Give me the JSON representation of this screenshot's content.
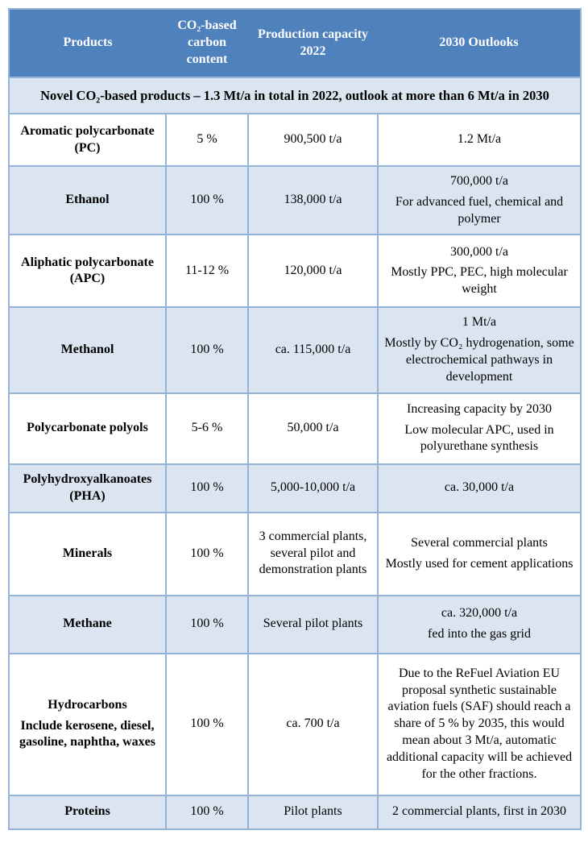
{
  "colors": {
    "header_bg": "#4f81bd",
    "header_text": "#ffffff",
    "band_bg": "#dbe5f1",
    "border_color": "#95b3d7"
  },
  "table": {
    "columns": [
      "Products",
      "CO₂-based carbon content",
      "Production capacity 2022",
      "2030 Outlooks"
    ],
    "subheader": "Novel CO₂-based products – 1.3 Mt/a in total in 2022, outlook at more than 6 Mt/a in 2030",
    "rows": [
      {
        "product": [
          "Aromatic polycarbonate (PC)"
        ],
        "carbon_content": "5 %",
        "capacity": [
          "900,500 t/a"
        ],
        "outlook": [
          "1.2 Mt/a"
        ]
      },
      {
        "product": [
          "Ethanol"
        ],
        "carbon_content": "100 %",
        "capacity": [
          "138,000 t/a"
        ],
        "outlook": [
          "700,000 t/a",
          "For advanced fuel, chemical and polymer"
        ]
      },
      {
        "product": [
          "Aliphatic polycarbonate (APC)"
        ],
        "carbon_content": "11-12 %",
        "capacity": [
          "120,000 t/a"
        ],
        "outlook": [
          "300,000 t/a",
          "Mostly PPC, PEC, high molecular weight"
        ]
      },
      {
        "product": [
          "Methanol"
        ],
        "carbon_content": "100 %",
        "capacity": [
          "ca. 115,000 t/a"
        ],
        "outlook": [
          "1 Mt/a",
          "Mostly by CO₂ hydrogenation, some electrochemical pathways in development"
        ]
      },
      {
        "product": [
          "Polycarbonate polyols"
        ],
        "carbon_content": "5-6 %",
        "capacity": [
          "50,000 t/a"
        ],
        "outlook": [
          "Increasing capacity by 2030",
          "Low molecular APC, used in polyurethane synthesis"
        ]
      },
      {
        "product": [
          "Polyhydroxyalkanoates (PHA)"
        ],
        "carbon_content": "100 %",
        "capacity": [
          "5,000-10,000 t/a"
        ],
        "outlook": [
          "ca. 30,000 t/a"
        ]
      },
      {
        "product": [
          "Minerals"
        ],
        "carbon_content": "100 %",
        "capacity": [
          "3 commercial plants, several pilot and demonstration plants"
        ],
        "outlook": [
          "Several commercial plants",
          "Mostly used for cement applications"
        ]
      },
      {
        "product": [
          "Methane"
        ],
        "carbon_content": "100 %",
        "capacity": [
          "Several pilot plants"
        ],
        "outlook": [
          "ca. 320,000 t/a",
          "fed into the gas grid"
        ]
      },
      {
        "product": [
          "Hydrocarbons",
          "Include kerosene, diesel, gasoline, naphtha, waxes"
        ],
        "carbon_content": "100 %",
        "capacity": [
          "ca. 700 t/a"
        ],
        "outlook": [
          "Due to the ReFuel Aviation EU proposal synthetic sustainable aviation fuels (SAF) should reach a share of 5 % by 2035, this would mean about 3 Mt/a, automatic additional capacity will be achieved for the other fractions."
        ]
      },
      {
        "product": [
          "Proteins"
        ],
        "carbon_content": "100 %",
        "capacity": [
          "Pilot plants"
        ],
        "outlook": [
          "2 commercial plants, first in 2030"
        ]
      }
    ]
  }
}
